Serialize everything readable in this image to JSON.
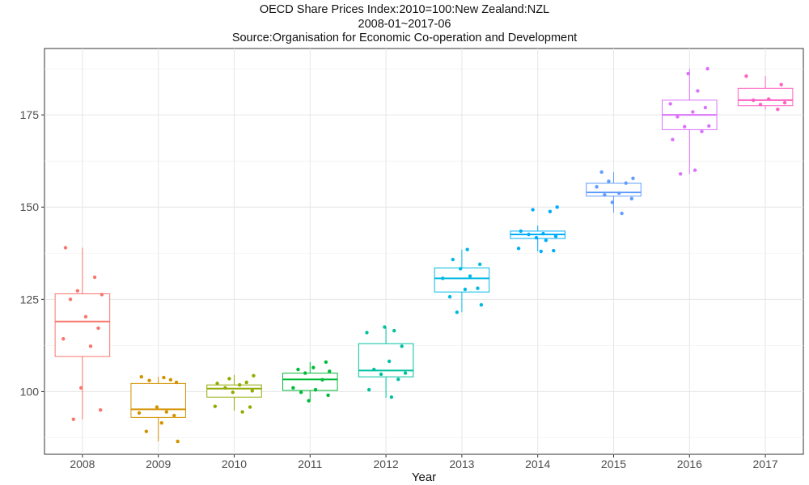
{
  "chart_data": {
    "type": "box",
    "title": "OECD Share Prices Index:2010=100:New Zealand:NZL",
    "subtitle": "2008-01~2017-06",
    "source": "Source:Organisation for Economic Co-operation and Development",
    "xlabel": "Year",
    "ylabel": "",
    "categories": [
      "2008",
      "2009",
      "2010",
      "2011",
      "2012",
      "2013",
      "2014",
      "2015",
      "2016",
      "2017"
    ],
    "ylim": [
      83,
      193
    ],
    "yticks": [
      100,
      125,
      150,
      175
    ],
    "grid": true,
    "legend": "none",
    "colors": [
      "#F8766D",
      "#D39200",
      "#93AA00",
      "#00BA38",
      "#00C19F",
      "#00B9E3",
      "#00ADFA",
      "#619CFF",
      "#DB72FB",
      "#FF61C3"
    ],
    "boxes": [
      {
        "category": "2008",
        "min": 92.5,
        "q1": 109.5,
        "median": 119.0,
        "q3": 126.5,
        "max": 139.0
      },
      {
        "category": "2009",
        "min": 86.5,
        "q1": 93.0,
        "median": 95.2,
        "q3": 102.2,
        "max": 104.0
      },
      {
        "category": "2010",
        "min": 94.8,
        "q1": 98.5,
        "median": 100.8,
        "q3": 101.8,
        "max": 104.5
      },
      {
        "category": "2011",
        "min": 97.5,
        "q1": 100.3,
        "median": 103.3,
        "q3": 105.0,
        "max": 108.0
      },
      {
        "category": "2012",
        "min": 98.3,
        "q1": 104.0,
        "median": 105.7,
        "q3": 113.0,
        "max": 117.5
      },
      {
        "category": "2013",
        "min": 121.5,
        "q1": 127.0,
        "median": 130.7,
        "q3": 133.5,
        "max": 138.5
      },
      {
        "category": "2014",
        "min": 138.0,
        "q1": 141.5,
        "median": 142.6,
        "q3": 143.5,
        "max": 145.0
      },
      {
        "category": "2015",
        "min": 148.5,
        "q1": 153.0,
        "median": 154.0,
        "q3": 156.5,
        "max": 159.5
      },
      {
        "category": "2016",
        "min": 159.0,
        "q1": 171.0,
        "median": 175.0,
        "q3": 179.0,
        "max": 187.5
      },
      {
        "category": "2017",
        "min": 176.5,
        "q1": 177.5,
        "median": 179.0,
        "q3": 182.2,
        "max": 185.5
      }
    ],
    "points": [
      {
        "category": "2008",
        "values": [
          139.0,
          131.0,
          127.3,
          126.3,
          125.0,
          120.3,
          117.2,
          114.3,
          112.3,
          101.0,
          95.0,
          92.5
        ]
      },
      {
        "category": "2009",
        "values": [
          86.5,
          89.2,
          91.5,
          93.5,
          94.2,
          94.5,
          95.8,
          102.5,
          103.0,
          103.8,
          104.0,
          103.2
        ]
      },
      {
        "category": "2010",
        "values": [
          95.8,
          96.0,
          94.5,
          99.8,
          100.2,
          101.0,
          101.8,
          102.2,
          102.5,
          103.5,
          104.3
        ]
      },
      {
        "category": "2011",
        "values": [
          97.5,
          99.0,
          99.8,
          100.5,
          101.0,
          103.2,
          105.0,
          105.5,
          106.0,
          106.5,
          108.0
        ]
      },
      {
        "category": "2012",
        "values": [
          98.5,
          100.5,
          103.3,
          104.7,
          105.0,
          106.0,
          108.2,
          112.3,
          116.0,
          116.5,
          117.5
        ]
      },
      {
        "category": "2013",
        "values": [
          121.5,
          123.5,
          125.7,
          127.7,
          128.0,
          130.7,
          131.3,
          133.3,
          134.5,
          135.8,
          138.5
        ]
      },
      {
        "category": "2014",
        "values": [
          138.0,
          138.2,
          138.8,
          141.0,
          141.7,
          142.1,
          142.6,
          142.8,
          143.5,
          148.8,
          149.3,
          150.0
        ]
      },
      {
        "category": "2015",
        "values": [
          148.3,
          151.3,
          152.3,
          153.3,
          153.8,
          155.5,
          156.5,
          157.0,
          157.8,
          159.5
        ]
      },
      {
        "category": "2016",
        "values": [
          159.0,
          160.0,
          168.3,
          170.5,
          171.8,
          172.0,
          174.5,
          175.8,
          177.0,
          178.0,
          181.5,
          186.2,
          187.5
        ]
      },
      {
        "category": "2017",
        "values": [
          176.5,
          177.8,
          178.3,
          179.0,
          179.3,
          183.2,
          185.5
        ]
      }
    ]
  }
}
